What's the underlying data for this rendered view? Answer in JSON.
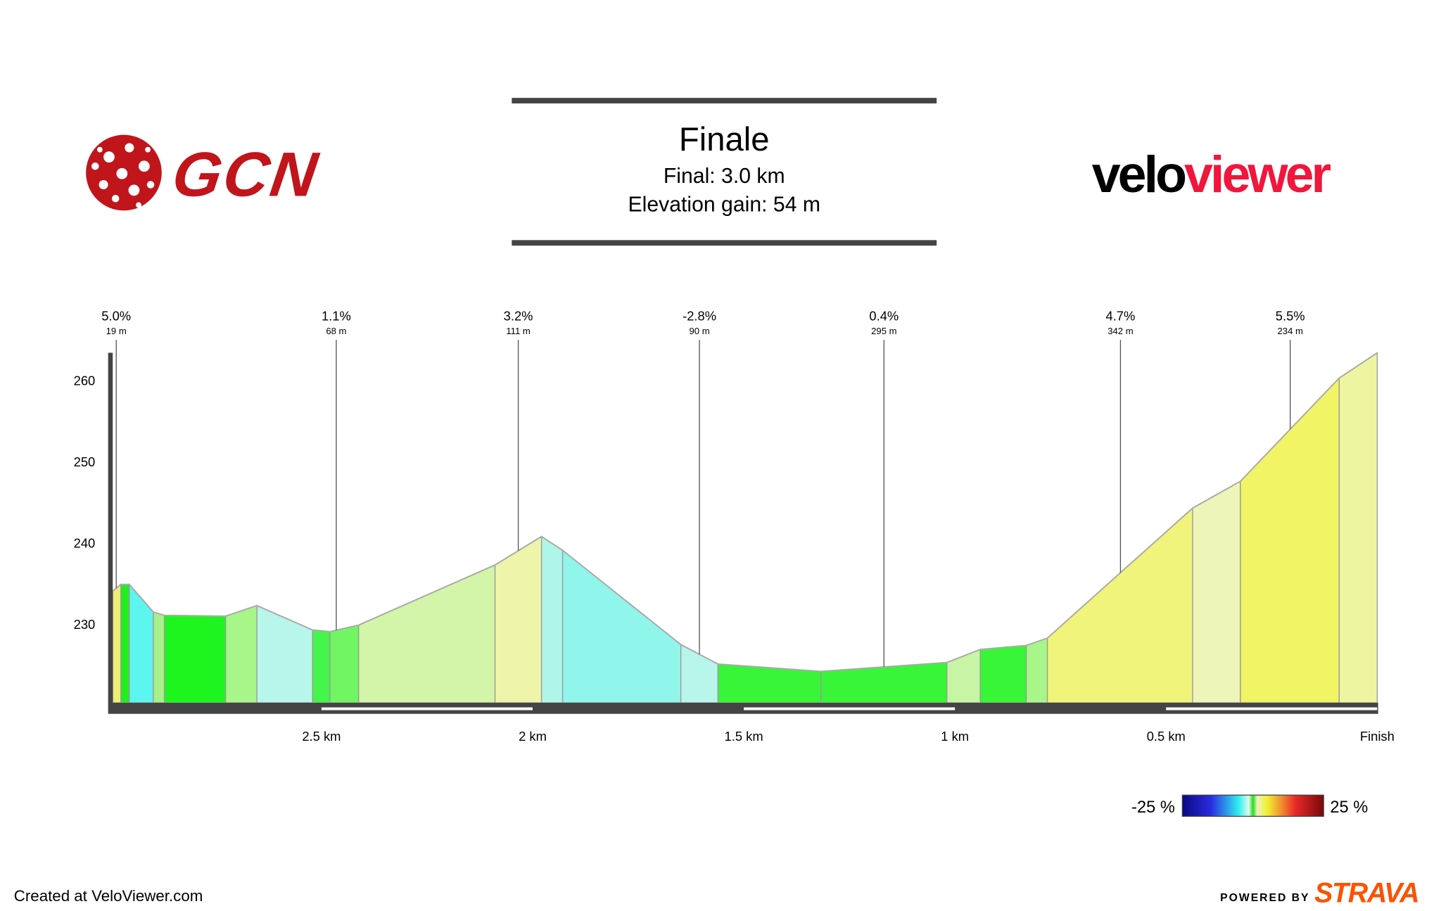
{
  "header": {
    "title": "Finale",
    "line1": "Final: 3.0 km",
    "line2": "Elevation gain: 54 m"
  },
  "logos": {
    "gcn": "GCN",
    "velo_black": "velo",
    "velo_red": "viewer",
    "strava_prefix": "POWERED BY",
    "strava": "STRAVA"
  },
  "footer": {
    "created": "Created at VeloViewer.com"
  },
  "legend": {
    "min_label": "-25 %",
    "max_label": "25 %"
  },
  "colors": {
    "gcn_red": "#c0151b",
    "velo_red": "#f0163c",
    "strava_orange": "#fc5200",
    "axis": "#444444"
  },
  "chart_data": {
    "type": "area",
    "title": "Finale",
    "xlabel": "",
    "ylabel": "",
    "xlim_km_from_start": [
      0,
      3.0
    ],
    "ylim": [
      220.4,
      264
    ],
    "y_ticks": [
      "230",
      "240",
      "250",
      "260"
    ],
    "x_ticks": [
      {
        "km_from_start": 0.5,
        "label": "2.5 km"
      },
      {
        "km_from_start": 1.0,
        "label": "2 km"
      },
      {
        "km_from_start": 1.5,
        "label": "1.5 km"
      },
      {
        "km_from_start": 2.0,
        "label": "1 km"
      },
      {
        "km_from_start": 2.5,
        "label": "0.5 km"
      },
      {
        "km_from_start": 3.0,
        "label": "Finish"
      }
    ],
    "profile_km": [
      0.006,
      0.025,
      0.045,
      0.102,
      0.128,
      0.273,
      0.347,
      0.479,
      0.52,
      0.588,
      0.911,
      1.021,
      1.071,
      1.351,
      1.439,
      1.683,
      1.981,
      2.06,
      2.169,
      2.219,
      2.563,
      2.676,
      2.91,
      3.0
    ],
    "profile_elev_m": [
      234.1,
      234.9,
      234.9,
      231.5,
      231.1,
      231.0,
      232.3,
      229.3,
      229.1,
      229.9,
      237.3,
      240.8,
      239.1,
      227.5,
      225.1,
      224.2,
      225.3,
      226.9,
      227.4,
      228.3,
      244.3,
      247.6,
      260.3,
      263.4
    ],
    "segment_colors": [
      "#eeee70",
      "#1ef01e",
      "#5cf5f0",
      "#a8f08a",
      "#1ef51e",
      "#a8f58a",
      "#b8f5ea",
      "#44f54a",
      "#72f562",
      "#d2f5aa",
      "#eef5aa",
      "#b0f5ea",
      "#90f5ea",
      "#b8f5ea",
      "#38f538",
      "#38f538",
      "#c8f5a5",
      "#38f538",
      "#a8f58a",
      "#f0f47a",
      "#eef5b8",
      "#f0f465",
      "#eef5a0"
    ],
    "annotations": [
      {
        "km_from_start": 0.014,
        "gradient": "5.0%",
        "length": "19 m"
      },
      {
        "km_from_start": 0.535,
        "gradient": "1.1%",
        "length": "68 m"
      },
      {
        "km_from_start": 0.966,
        "gradient": "3.2%",
        "length": "111 m"
      },
      {
        "km_from_start": 1.395,
        "gradient": "-2.8%",
        "length": "90 m"
      },
      {
        "km_from_start": 1.832,
        "gradient": "0.4%",
        "length": "295 m"
      },
      {
        "km_from_start": 2.392,
        "gradient": "4.7%",
        "length": "342 m"
      },
      {
        "km_from_start": 2.794,
        "gradient": "5.5%",
        "length": "234 m"
      }
    ],
    "gradient_scale": {
      "min": -25,
      "max": 25
    }
  }
}
